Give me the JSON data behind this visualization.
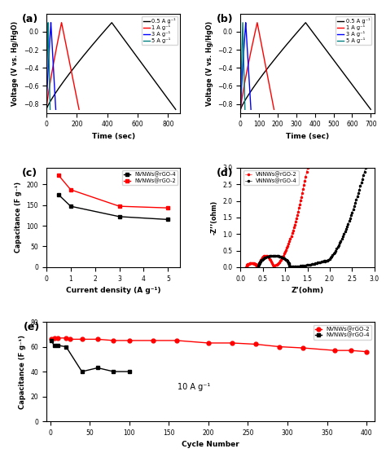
{
  "panel_a": {
    "label": "(a)",
    "ylabel": "Voltage (V vs. Hg/HgO)",
    "xlabel": "Time (sec)",
    "ylim": [
      -0.9,
      0.2
    ],
    "xlim": [
      0,
      880
    ],
    "yticks": [
      -0.8,
      -0.6,
      -0.4,
      -0.2,
      0.0
    ],
    "xticks": [
      0,
      200,
      400,
      600,
      800
    ],
    "legend": [
      "0.5 A g⁻¹",
      "1 A g⁻¹",
      "3 A g⁻¹",
      "5 A g⁻¹"
    ],
    "colors": [
      "black",
      "red",
      "blue",
      "#008080"
    ],
    "gcd": [
      {
        "t_ch": 430,
        "t_dc": 850,
        "v_min": -0.86,
        "v_max": 0.1
      },
      {
        "t_ch": 100,
        "t_dc": 215,
        "v_min": -0.86,
        "v_max": 0.1
      },
      {
        "t_ch": 30,
        "t_dc": 62,
        "v_min": -0.86,
        "v_max": 0.1
      },
      {
        "t_ch": 12,
        "t_dc": 25,
        "v_min": -0.86,
        "v_max": 0.1
      }
    ]
  },
  "panel_b": {
    "label": "(b)",
    "ylabel": "Voltage (V vs. Hg/HgO)",
    "xlabel": "Time (sec)",
    "ylim": [
      -0.9,
      0.2
    ],
    "xlim": [
      0,
      720
    ],
    "yticks": [
      -0.8,
      -0.6,
      -0.4,
      -0.2,
      0.0
    ],
    "xticks": [
      0,
      100,
      200,
      300,
      400,
      500,
      600,
      700
    ],
    "legend": [
      "0.5 A g⁻¹",
      "1 A g⁻¹",
      "3 A g⁻¹",
      "5 A g⁻¹"
    ],
    "colors": [
      "black",
      "red",
      "blue",
      "#008080"
    ],
    "gcd": [
      {
        "t_ch": 350,
        "t_dc": 700,
        "v_min": -0.86,
        "v_max": 0.1
      },
      {
        "t_ch": 90,
        "t_dc": 180,
        "v_min": -0.86,
        "v_max": 0.1
      },
      {
        "t_ch": 28,
        "t_dc": 56,
        "v_min": -0.86,
        "v_max": 0.1
      },
      {
        "t_ch": 12,
        "t_dc": 24,
        "v_min": -0.86,
        "v_max": 0.1
      }
    ]
  },
  "panel_c": {
    "label": "(c)",
    "ylabel": "Capacitance (F g⁻¹)",
    "xlabel": "Current density (A g⁻¹)",
    "ylim": [
      0,
      240
    ],
    "xlim": [
      0,
      5.5
    ],
    "xticks": [
      0,
      1,
      2,
      3,
      4,
      5
    ],
    "yticks": [
      0,
      50,
      100,
      150,
      200
    ],
    "series": [
      {
        "name": "NVNWs@rGO-4",
        "color": "black",
        "marker": "s",
        "x": [
          0.5,
          1,
          3,
          5
        ],
        "y": [
          175,
          147,
          122,
          115
        ]
      },
      {
        "name": "NVNWs@rGO-2",
        "color": "red",
        "marker": "s",
        "x": [
          0.5,
          1,
          3,
          5
        ],
        "y": [
          222,
          187,
          147,
          143
        ]
      }
    ]
  },
  "panel_d": {
    "label": "(d)",
    "ylabel": "-Z’’(ohm)",
    "xlabel": "Z’(ohm)",
    "ylim": [
      0,
      3.0
    ],
    "xlim": [
      0.0,
      3.0
    ],
    "xticks": [
      0.0,
      0.5,
      1.0,
      1.5,
      2.0,
      2.5,
      3.0
    ],
    "yticks": [
      0.0,
      0.5,
      1.0,
      1.5,
      2.0,
      2.5,
      3.0
    ],
    "series": [
      {
        "name": "VNNWs@rGO-2",
        "color": "red"
      },
      {
        "name": "VNNWs@rGO-4",
        "color": "black"
      }
    ]
  },
  "panel_e": {
    "label": "(e)",
    "ylabel": "Capacitance (F g⁻¹)",
    "xlabel": "Cycle Number",
    "ylim": [
      0,
      80
    ],
    "xlim": [
      -5,
      410
    ],
    "xticks": [
      0,
      50,
      100,
      150,
      200,
      250,
      300,
      350,
      400
    ],
    "yticks": [
      0,
      20,
      40,
      60,
      80
    ],
    "annotation": "10 A g⁻¹",
    "series": [
      {
        "name": "NVNWs@rGO-2",
        "color": "red",
        "marker": "o",
        "x": [
          1,
          5,
          10,
          20,
          25,
          40,
          60,
          80,
          100,
          130,
          160,
          200,
          230,
          260,
          290,
          320,
          360,
          380,
          400
        ],
        "y": [
          66,
          67,
          67,
          67,
          66,
          66,
          66,
          65,
          65,
          65,
          65,
          63,
          63,
          62,
          60,
          59,
          57,
          57,
          56
        ]
      },
      {
        "name": "NVNWs@rGO-4",
        "color": "black",
        "marker": "s",
        "x": [
          1,
          5,
          10,
          20,
          40,
          60,
          80,
          100
        ],
        "y": [
          65,
          61,
          61,
          60,
          40,
          43,
          40,
          40
        ]
      }
    ]
  }
}
